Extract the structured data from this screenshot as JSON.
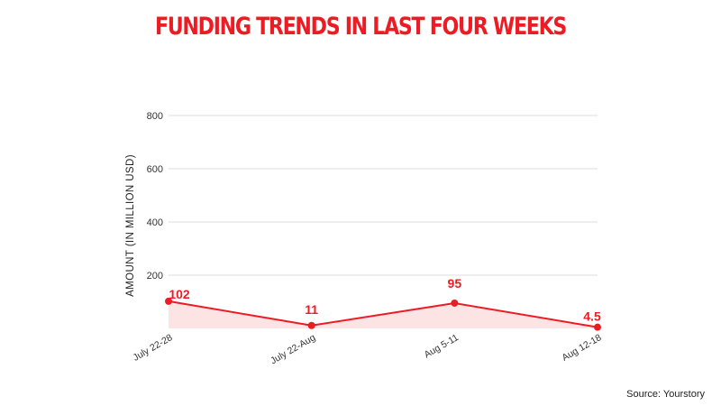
{
  "colors": {
    "accent": "#ed1c24",
    "area_fill": "#fde4e4",
    "grid": "#dddddd"
  },
  "footer": {
    "source": "Source: Yourstory"
  },
  "chart_data": {
    "type": "area",
    "title": "FUNDING TRENDS IN LAST FOUR WEEKS",
    "ylabel": "AMOUNT (IN MILLION USD)",
    "xlabel": "",
    "categories": [
      "July 22-28",
      "July 22-Aug",
      "Aug 5-11",
      "Aug 12-18"
    ],
    "values": [
      102,
      11,
      95,
      4.5
    ],
    "data_labels": [
      "102",
      "11",
      "95",
      "4.5"
    ],
    "ylim": [
      0,
      800
    ],
    "yticks": [
      200,
      400,
      600,
      800
    ],
    "grid": true,
    "legend": "none"
  }
}
